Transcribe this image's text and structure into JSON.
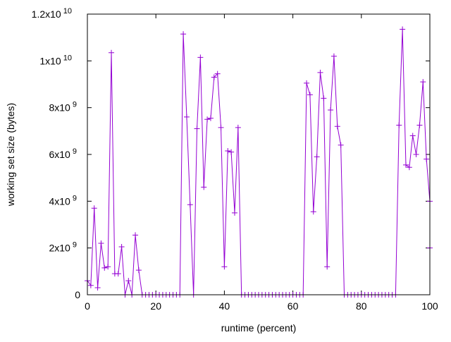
{
  "chart_data": {
    "type": "line",
    "title": "",
    "xlabel": "runtime (percent)",
    "ylabel": "working set size (bytes)",
    "xlim": [
      0,
      100
    ],
    "ylim": [
      0,
      12000000000
    ],
    "grid": false,
    "line_color": "#9400d3",
    "x_ticks": [
      {
        "value": 0,
        "label": "0"
      },
      {
        "value": 20,
        "label": "20"
      },
      {
        "value": 40,
        "label": "40"
      },
      {
        "value": 60,
        "label": "60"
      },
      {
        "value": 80,
        "label": "80"
      },
      {
        "value": 100,
        "label": "100"
      }
    ],
    "y_ticks": [
      {
        "value": 0,
        "mant": "0",
        "exp": ""
      },
      {
        "value": 2000000000,
        "mant": "2x10",
        "exp": "9"
      },
      {
        "value": 4000000000,
        "mant": "4x10",
        "exp": "9"
      },
      {
        "value": 6000000000,
        "mant": "6x10",
        "exp": "9"
      },
      {
        "value": 8000000000,
        "mant": "8x10",
        "exp": "9"
      },
      {
        "value": 10000000000,
        "mant": "1x10",
        "exp": "10"
      },
      {
        "value": 12000000000,
        "mant": "1.2x10",
        "exp": "10"
      }
    ],
    "series": [
      {
        "name": "working set size",
        "unit_scale": 1000000000,
        "x": [
          0,
          1,
          2,
          3,
          4,
          5,
          6,
          7,
          8,
          9,
          10,
          11,
          12,
          13,
          14,
          15,
          16,
          17,
          18,
          19,
          20,
          21,
          22,
          23,
          24,
          25,
          26,
          27,
          28,
          29,
          30,
          31,
          32,
          33,
          34,
          35,
          36,
          37,
          38,
          39,
          40,
          41,
          42,
          43,
          44,
          45,
          46,
          47,
          48,
          49,
          50,
          51,
          52,
          53,
          54,
          55,
          56,
          57,
          58,
          59,
          60,
          61,
          62,
          63,
          64,
          65,
          66,
          67,
          68,
          69,
          70,
          71,
          72,
          73,
          74,
          75,
          76,
          77,
          78,
          79,
          80,
          81,
          82,
          83,
          84,
          85,
          86,
          87,
          88,
          89,
          90,
          91,
          92,
          93,
          94,
          95,
          96,
          97,
          98,
          99,
          100,
          100
        ],
        "values": [
          0.6,
          0.4,
          3.7,
          0.3,
          2.2,
          1.15,
          1.2,
          10.35,
          0.9,
          0.9,
          2.05,
          0,
          0.6,
          0,
          2.55,
          1.05,
          0,
          0,
          0,
          0,
          0,
          0,
          0,
          0,
          0,
          0,
          0,
          0,
          11.15,
          7.6,
          3.85,
          0,
          7.1,
          10.15,
          4.6,
          7.5,
          7.55,
          9.3,
          9.45,
          7.15,
          1.2,
          6.15,
          6.1,
          3.5,
          7.15,
          0,
          0,
          0,
          0,
          0,
          0,
          0,
          0,
          0,
          0,
          0,
          0,
          0,
          0,
          0,
          0,
          0,
          0,
          0,
          9.05,
          8.55,
          3.55,
          5.9,
          9.5,
          8.4,
          1.2,
          7.9,
          10.2,
          7.2,
          6.4,
          0,
          0,
          0,
          0,
          0,
          0,
          0,
          0,
          0,
          0,
          0,
          0,
          0,
          0,
          0,
          0,
          7.25,
          11.35,
          5.55,
          5.45,
          6.8,
          6.0,
          7.25,
          9.1,
          5.8,
          4.0,
          2.0
        ]
      }
    ]
  }
}
